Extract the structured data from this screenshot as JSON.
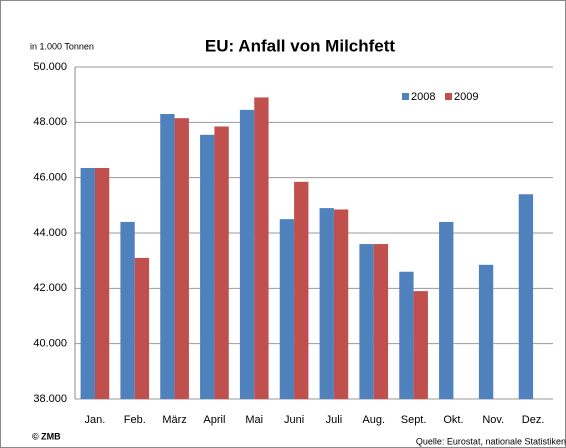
{
  "chart_data": {
    "type": "bar",
    "title": "EU: Anfall von Milchfett",
    "unit_label": "in 1.000 Tonnen",
    "credit": "© ZMB",
    "source": "Quelle: Eurostat, nationale Statistiken",
    "categories": [
      "Jan.",
      "Feb.",
      "März",
      "April",
      "Mai",
      "Juni",
      "Juli",
      "Aug.",
      "Sept.",
      "Okt.",
      "Nov.",
      "Dez."
    ],
    "series": [
      {
        "name": "2008",
        "color": "#4f81bd",
        "values": [
          46350,
          44400,
          48300,
          47550,
          48450,
          44500,
          44900,
          43600,
          42600,
          44400,
          42850,
          45400
        ]
      },
      {
        "name": "2009",
        "color": "#c0504d",
        "values": [
          46350,
          43100,
          48150,
          47850,
          48900,
          45850,
          44850,
          43600,
          41900,
          null,
          null,
          null
        ]
      }
    ],
    "ylim": [
      38000,
      50000
    ],
    "yticks": [
      {
        "value": 38000,
        "label": "38.000"
      },
      {
        "value": 40000,
        "label": "40.000"
      },
      {
        "value": 42000,
        "label": "42.000"
      },
      {
        "value": 44000,
        "label": "44.000"
      },
      {
        "value": 46000,
        "label": "46.000"
      },
      {
        "value": 48000,
        "label": "48.000"
      },
      {
        "value": 50000,
        "label": "50.000"
      }
    ],
    "grid": true,
    "legend": "top-right"
  }
}
